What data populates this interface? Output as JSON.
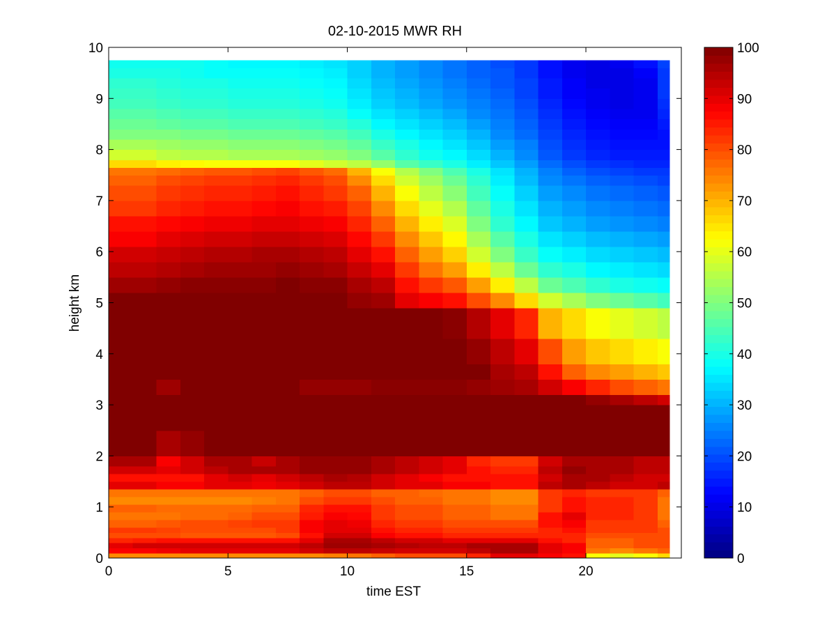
{
  "chart_data": {
    "type": "heatmap",
    "title": "02-10-2015 MWR RH",
    "xlabel": "time EST",
    "ylabel": "height km",
    "xlim": [
      0,
      24
    ],
    "ylim": [
      0,
      10
    ],
    "x_ticks": [
      0,
      5,
      10,
      15,
      20
    ],
    "x_tick_labels": [
      "0",
      "5",
      "10",
      "15",
      "20"
    ],
    "y_ticks": [
      0,
      1,
      2,
      3,
      4,
      5,
      6,
      7,
      8,
      9,
      10
    ],
    "y_tick_labels": [
      "0",
      "1",
      "2",
      "3",
      "4",
      "5",
      "6",
      "7",
      "8",
      "9",
      "10"
    ],
    "colorbar": {
      "colormap": "jet",
      "range": [
        0,
        100
      ],
      "ticks": [
        0,
        10,
        20,
        30,
        40,
        50,
        60,
        70,
        80,
        90,
        100
      ],
      "tick_labels": [
        "0",
        "10",
        "20",
        "30",
        "40",
        "50",
        "60",
        "70",
        "80",
        "90",
        "100"
      ],
      "position": "right"
    },
    "time_columns": [
      0.0,
      1.0,
      2.0,
      3.0,
      4.0,
      5.0,
      6.0,
      7.0,
      8.0,
      9.0,
      10.0,
      11.0,
      12.0,
      13.0,
      14.0,
      15.0,
      16.0,
      17.0,
      18.0,
      19.0,
      20.0,
      21.0,
      22.0,
      23.0
    ],
    "data_time_max": 23.5,
    "data_height_max": 9.75,
    "height_levels": [
      0,
      0.1,
      0.2,
      0.3,
      0.4,
      0.5,
      0.6,
      0.75,
      0.9,
      1.05,
      1.2,
      1.35,
      1.5,
      1.65,
      1.8,
      2.0,
      2.5,
      3.0,
      3.2,
      3.5,
      3.8,
      4.3,
      4.9,
      5.2,
      5.5,
      5.8,
      6.1,
      6.4,
      6.7,
      7.0,
      7.3,
      7.5,
      7.65,
      7.8,
      8.0,
      8.2,
      8.4,
      8.6,
      8.8,
      9.0,
      9.2,
      9.4,
      9.6
    ],
    "rh_profiles": [
      [
        74,
        88,
        90,
        84,
        80,
        82,
        78,
        76,
        78,
        74,
        76,
        90,
        86,
        92,
        96,
        100,
        100,
        100,
        100,
        100,
        100,
        100,
        100,
        97,
        94,
        92,
        88,
        86,
        82,
        80,
        78,
        76,
        66,
        58,
        54,
        50,
        48,
        46,
        44,
        43,
        42,
        40,
        39
      ],
      [
        74,
        88,
        92,
        85,
        80,
        82,
        78,
        76,
        78,
        74,
        76,
        90,
        86,
        92,
        96,
        100,
        100,
        100,
        100,
        100,
        100,
        100,
        100,
        97,
        94,
        92,
        88,
        86,
        82,
        80,
        78,
        76,
        66,
        58,
        54,
        50,
        48,
        46,
        44,
        43,
        42,
        40,
        39
      ],
      [
        74,
        89,
        92,
        86,
        80,
        81,
        79,
        76,
        77,
        74,
        76,
        88,
        86,
        90,
        88,
        96,
        100,
        100,
        97,
        100,
        100,
        100,
        100,
        98,
        95,
        93,
        90,
        87,
        84,
        82,
        80,
        77,
        64,
        56,
        53,
        50,
        47,
        45,
        43,
        42,
        41,
        40,
        39
      ],
      [
        74,
        90,
        92,
        86,
        79,
        80,
        80,
        77,
        77,
        74,
        76,
        88,
        86,
        92,
        92,
        98,
        100,
        100,
        100,
        100,
        100,
        100,
        100,
        99,
        96,
        94,
        91,
        88,
        85,
        83,
        81,
        78,
        63,
        55,
        52,
        49,
        46,
        44,
        42,
        41,
        40,
        39,
        39
      ],
      [
        74,
        90,
        92,
        86,
        79,
        80,
        80,
        77,
        77,
        74,
        76,
        90,
        90,
        94,
        96,
        100,
        100,
        100,
        100,
        100,
        100,
        100,
        100,
        99,
        97,
        95,
        92,
        89,
        86,
        84,
        82,
        79,
        62,
        55,
        52,
        49,
        46,
        44,
        42,
        41,
        40,
        38,
        38
      ],
      [
        74,
        90,
        92,
        86,
        79,
        80,
        81,
        78,
        77,
        74,
        76,
        90,
        92,
        96,
        96,
        100,
        100,
        100,
        100,
        100,
        100,
        100,
        100,
        99,
        97,
        95,
        92,
        89,
        86,
        84,
        82,
        79,
        62,
        54,
        51,
        48,
        45,
        43,
        41,
        40,
        39,
        38,
        37
      ],
      [
        74,
        90,
        92,
        86,
        79,
        80,
        82,
        80,
        78,
        75,
        76,
        89,
        90,
        96,
        93,
        100,
        100,
        100,
        100,
        100,
        100,
        100,
        100,
        99,
        97,
        96,
        93,
        90,
        87,
        85,
        83,
        80,
        62,
        54,
        51,
        48,
        45,
        43,
        41,
        40,
        39,
        38,
        37
      ],
      [
        74,
        90,
        92,
        86,
        80,
        82,
        82,
        80,
        78,
        76,
        76,
        90,
        92,
        96,
        96,
        100,
        100,
        100,
        100,
        100,
        100,
        100,
        100,
        100,
        98,
        96,
        93,
        90,
        88,
        86,
        84,
        81,
        62,
        54,
        51,
        48,
        45,
        43,
        41,
        40,
        39,
        38,
        37
      ],
      [
        74,
        92,
        94,
        90,
        86,
        88,
        88,
        85,
        84,
        80,
        78,
        92,
        94,
        98,
        98,
        100,
        100,
        100,
        98,
        100,
        100,
        100,
        100,
        99,
        97,
        95,
        92,
        89,
        86,
        84,
        82,
        79,
        60,
        53,
        50,
        47,
        44,
        42,
        40,
        39,
        38,
        37,
        36
      ],
      [
        75,
        94,
        97,
        96,
        92,
        90,
        90,
        88,
        86,
        82,
        80,
        94,
        96,
        98,
        98,
        100,
        100,
        100,
        98,
        100,
        100,
        100,
        100,
        99,
        96,
        94,
        91,
        88,
        85,
        82,
        80,
        77,
        58,
        52,
        49,
        46,
        43,
        41,
        39,
        38,
        37,
        36,
        35
      ],
      [
        76,
        94,
        97,
        96,
        92,
        90,
        89,
        87,
        86,
        82,
        80,
        94,
        95,
        98,
        98,
        100,
        100,
        100,
        98,
        100,
        100,
        100,
        98,
        96,
        93,
        90,
        87,
        84,
        81,
        78,
        74,
        70,
        56,
        50,
        47,
        44,
        41,
        38,
        36,
        35,
        34,
        33,
        33
      ],
      [
        78,
        93,
        96,
        94,
        88,
        86,
        84,
        82,
        82,
        80,
        78,
        92,
        92,
        96,
        96,
        100,
        100,
        100,
        99,
        100,
        100,
        100,
        97,
        94,
        90,
        86,
        82,
        78,
        74,
        70,
        66,
        62,
        52,
        46,
        43,
        40,
        37,
        35,
        33,
        32,
        31,
        30,
        30
      ],
      [
        80,
        92,
        95,
        92,
        86,
        84,
        82,
        80,
        80,
        78,
        78,
        90,
        90,
        94,
        94,
        100,
        100,
        100,
        99,
        100,
        100,
        100,
        90,
        86,
        82,
        78,
        74,
        70,
        66,
        62,
        58,
        55,
        46,
        42,
        40,
        37,
        35,
        33,
        31,
        30,
        29,
        28,
        28
      ],
      [
        80,
        92,
        94,
        92,
        86,
        84,
        82,
        80,
        80,
        78,
        77,
        90,
        88,
        92,
        92,
        100,
        100,
        100,
        99,
        100,
        100,
        100,
        88,
        82,
        76,
        72,
        68,
        64,
        60,
        56,
        53,
        50,
        43,
        39,
        37,
        35,
        33,
        31,
        29,
        28,
        27,
        26,
        26
      ],
      [
        80,
        92,
        94,
        90,
        84,
        82,
        80,
        78,
        78,
        76,
        76,
        88,
        86,
        90,
        90,
        100,
        100,
        100,
        99,
        100,
        100,
        99,
        86,
        79,
        72,
        67,
        63,
        59,
        55,
        51,
        48,
        45,
        40,
        37,
        35,
        33,
        31,
        29,
        27,
        26,
        25,
        24,
        24
      ],
      [
        84,
        94,
        96,
        90,
        84,
        82,
        80,
        78,
        78,
        76,
        76,
        88,
        86,
        86,
        84,
        100,
        100,
        100,
        98,
        100,
        98,
        95,
        80,
        72,
        64,
        58,
        54,
        50,
        47,
        44,
        42,
        40,
        36,
        34,
        32,
        30,
        28,
        26,
        25,
        24,
        23,
        22,
        22
      ],
      [
        90,
        96,
        96,
        90,
        84,
        82,
        80,
        76,
        76,
        74,
        74,
        86,
        86,
        84,
        82,
        100,
        100,
        100,
        97,
        96,
        94,
        90,
        74,
        64,
        56,
        50,
        46,
        42,
        40,
        38,
        36,
        35,
        32,
        30,
        28,
        26,
        25,
        24,
        23,
        22,
        21,
        21,
        20
      ],
      [
        90,
        96,
        96,
        90,
        84,
        82,
        80,
        76,
        76,
        74,
        74,
        86,
        86,
        84,
        82,
        100,
        100,
        100,
        96,
        94,
        90,
        84,
        66,
        56,
        48,
        43,
        40,
        37,
        35,
        33,
        31,
        30,
        28,
        26,
        25,
        23,
        22,
        21,
        20,
        19,
        19,
        18,
        18
      ],
      [
        88,
        90,
        90,
        86,
        84,
        84,
        86,
        86,
        82,
        82,
        82,
        94,
        92,
        94,
        92,
        100,
        100,
        100,
        92,
        86,
        80,
        70,
        58,
        48,
        42,
        38,
        35,
        32,
        30,
        28,
        26,
        25,
        23,
        21,
        20,
        19,
        18,
        17,
        16,
        15,
        15,
        14,
        14
      ],
      [
        86,
        88,
        88,
        84,
        84,
        86,
        88,
        90,
        86,
        86,
        84,
        96,
        96,
        98,
        96,
        100,
        100,
        100,
        88,
        78,
        72,
        66,
        54,
        45,
        40,
        36,
        33,
        30,
        28,
        26,
        24,
        22,
        20,
        18,
        17,
        16,
        15,
        14,
        13,
        12,
        12,
        11,
        11
      ],
      [
        62,
        76,
        78,
        78,
        80,
        82,
        82,
        84,
        84,
        84,
        82,
        94,
        96,
        96,
        96,
        100,
        100,
        98,
        84,
        74,
        68,
        62,
        50,
        42,
        37,
        34,
        31,
        28,
        26,
        24,
        22,
        20,
        18,
        16,
        15,
        14,
        13,
        12,
        11,
        11,
        10,
        10,
        10
      ],
      [
        60,
        74,
        78,
        78,
        80,
        82,
        82,
        84,
        84,
        84,
        82,
        92,
        94,
        96,
        96,
        100,
        100,
        96,
        80,
        72,
        66,
        60,
        48,
        40,
        36,
        33,
        30,
        27,
        25,
        23,
        21,
        19,
        17,
        15,
        14,
        13,
        12,
        11,
        10,
        10,
        10,
        10,
        11
      ],
      [
        62,
        76,
        80,
        80,
        80,
        82,
        82,
        82,
        82,
        82,
        82,
        92,
        92,
        94,
        94,
        100,
        100,
        94,
        78,
        70,
        64,
        58,
        46,
        39,
        35,
        32,
        29,
        26,
        24,
        22,
        20,
        18,
        16,
        15,
        14,
        13,
        12,
        11,
        11,
        11,
        11,
        12,
        14
      ],
      [
        66,
        78,
        80,
        80,
        80,
        80,
        78,
        76,
        76,
        76,
        78,
        94,
        92,
        94,
        94,
        100,
        100,
        92,
        76,
        68,
        62,
        56,
        44,
        38,
        34,
        31,
        28,
        25,
        23,
        21,
        19,
        18,
        16,
        15,
        14,
        14,
        15,
        16,
        17,
        18,
        18,
        18,
        19
      ]
    ]
  }
}
